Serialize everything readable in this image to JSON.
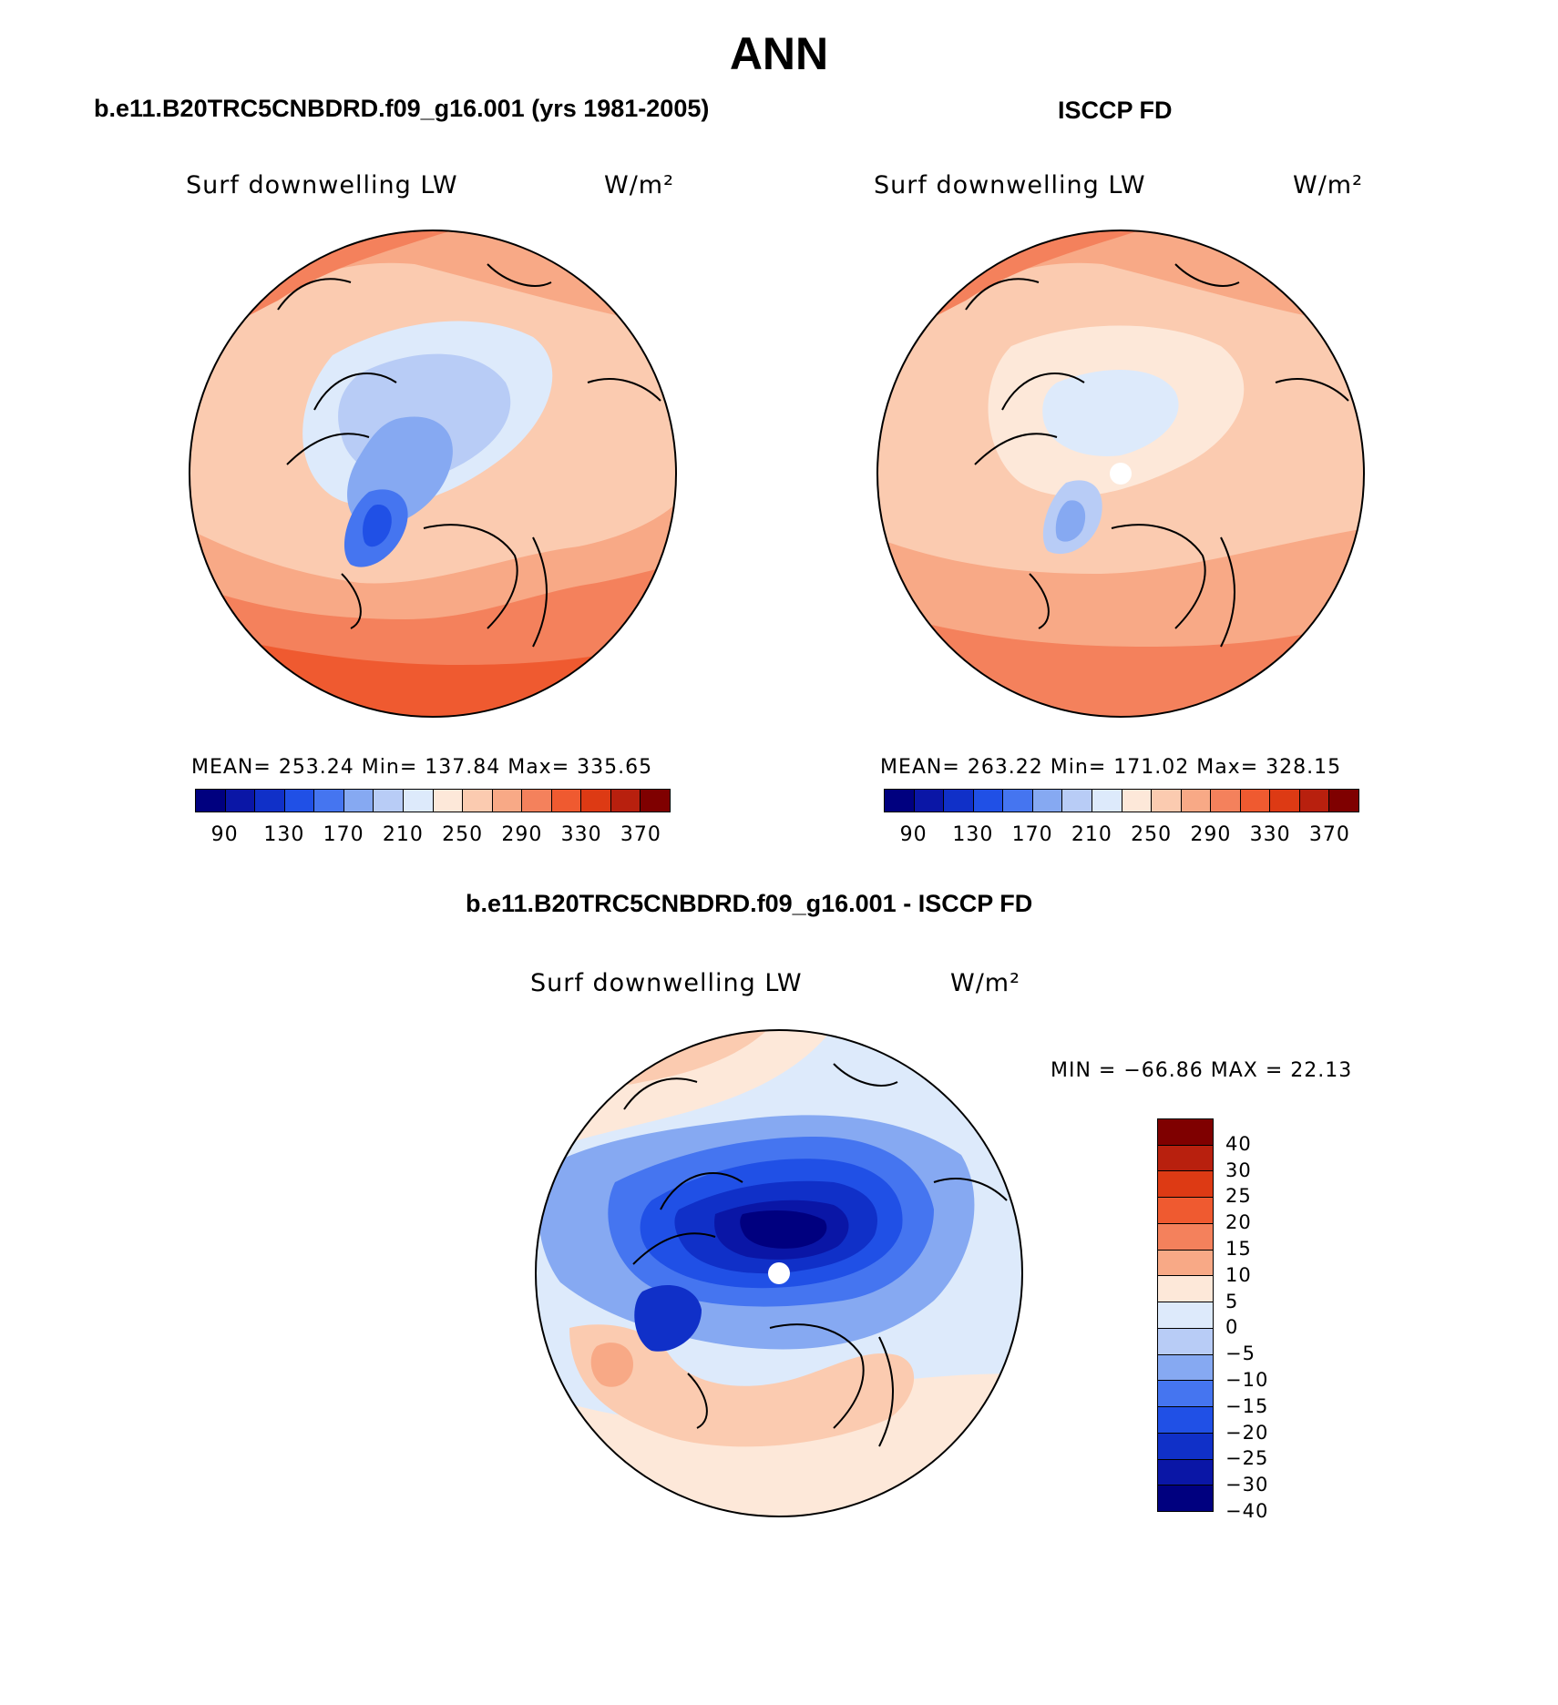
{
  "title": "ANN",
  "panels": [
    {
      "title": "b.e11.B20TRC5CNBDRD.f09_g16.001 (yrs 1981-2005)",
      "variable": "Surf downwelling LW",
      "units": "W/m²",
      "stats": "MEAN= 253.24   Min= 137.84   Max= 335.65"
    },
    {
      "title": "ISCCP FD",
      "variable": "Surf downwelling LW",
      "units": "W/m²",
      "stats": "MEAN= 263.22   Min= 171.02   Max= 328.15"
    },
    {
      "title": "b.e11.B20TRC5CNBDRD.f09_g16.001 - ISCCP FD",
      "variable": "Surf downwelling LW",
      "units": "W/m²",
      "stats": "MIN = −66.86 MAX =  22.13"
    }
  ],
  "abs_colorbar": {
    "colors": [
      "#00007f",
      "#0a16a6",
      "#1030c8",
      "#2050e6",
      "#4575f0",
      "#86a9f2",
      "#b8ccf6",
      "#ddeafb",
      "#fde8d9",
      "#fbcbb0",
      "#f8a986",
      "#f4815c",
      "#ef5a30",
      "#dd3a14",
      "#b8200e",
      "#7f0000"
    ],
    "tick_labels": [
      "90",
      "130",
      "170",
      "210",
      "250",
      "290",
      "330",
      "370"
    ]
  },
  "diff_colorbar": {
    "colors": [
      "#7f0000",
      "#b8200e",
      "#dd3a14",
      "#ef5a30",
      "#f4815c",
      "#f8a986",
      "#fde8d9",
      "#ddeafb",
      "#b8ccf6",
      "#86a9f2",
      "#4575f0",
      "#2050e6",
      "#1030c8",
      "#0a16a6",
      "#00007f"
    ],
    "tick_labels": [
      "40",
      "30",
      "25",
      "20",
      "15",
      "10",
      "5",
      "0",
      "−5",
      "−10",
      "−15",
      "−20",
      "−25",
      "−30",
      "−40"
    ]
  }
}
